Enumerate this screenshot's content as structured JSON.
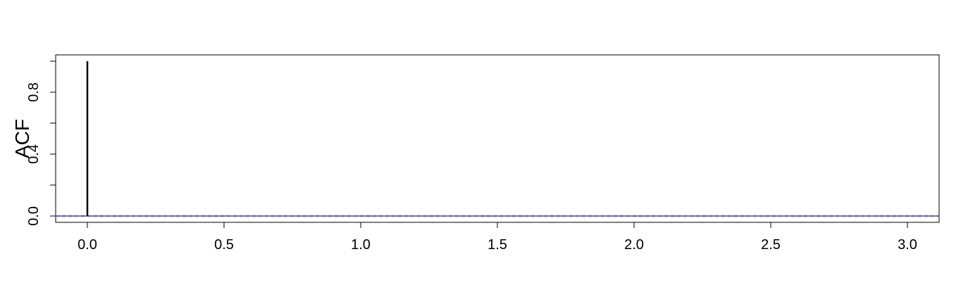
{
  "chart_data": {
    "type": "bar",
    "title": "",
    "xlabel": "",
    "ylabel": "ACF",
    "x": [
      0,
      1,
      2,
      3
    ],
    "values": [
      1.0,
      0.0,
      0.0,
      0.0
    ],
    "xlim": [
      -0.05,
      3.12
    ],
    "ylim": [
      -0.045,
      1.0
    ],
    "xticks": [
      "0.0",
      "0.5",
      "1.0",
      "1.5",
      "2.0",
      "2.5",
      "3.0"
    ],
    "yticks": [
      "0.0",
      "0.4",
      "0.8"
    ],
    "confidence_band": 0.002,
    "grid": false,
    "colors": {
      "bars": "#000000",
      "zero_line": "#000000",
      "ci_lines": "#6a6aa8"
    }
  }
}
